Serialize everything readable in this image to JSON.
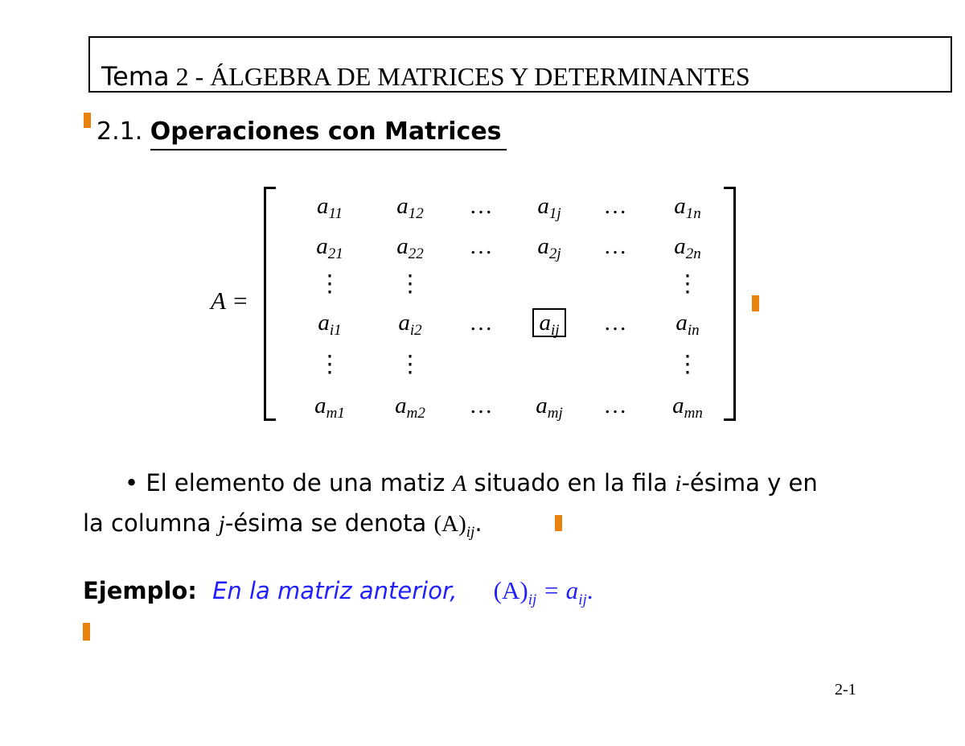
{
  "header": {
    "title_bold": "Tema",
    "title_rest": "2 - ÁLGEBRA DE MATRICES Y DETERMINANTES"
  },
  "section": {
    "number": "2.1.",
    "title": "Operaciones con Matrices"
  },
  "matrix": {
    "lhs": "A =",
    "rows": [
      [
        {
          "b": "a",
          "s": "11"
        },
        {
          "b": "a",
          "s": "12"
        },
        {
          "b": "…",
          "s": ""
        },
        {
          "b": "a",
          "s": "1j"
        },
        {
          "b": "…",
          "s": ""
        },
        {
          "b": "a",
          "s": "1n"
        }
      ],
      [
        {
          "b": "a",
          "s": "21"
        },
        {
          "b": "a",
          "s": "22"
        },
        {
          "b": "…",
          "s": ""
        },
        {
          "b": "a",
          "s": "2j"
        },
        {
          "b": "…",
          "s": ""
        },
        {
          "b": "a",
          "s": "2n"
        }
      ],
      [
        {
          "b": "⋮",
          "s": ""
        },
        {
          "b": "⋮",
          "s": ""
        },
        {
          "b": "",
          "s": ""
        },
        {
          "b": "",
          "s": ""
        },
        {
          "b": "",
          "s": ""
        },
        {
          "b": "⋮",
          "s": ""
        }
      ],
      [
        {
          "b": "a",
          "s": "i1"
        },
        {
          "b": "a",
          "s": "i2"
        },
        {
          "b": "…",
          "s": ""
        },
        {
          "b": "a",
          "s": "ij"
        },
        {
          "b": "…",
          "s": ""
        },
        {
          "b": "a",
          "s": "in"
        }
      ],
      [
        {
          "b": "⋮",
          "s": ""
        },
        {
          "b": "⋮",
          "s": ""
        },
        {
          "b": "",
          "s": ""
        },
        {
          "b": "",
          "s": ""
        },
        {
          "b": "",
          "s": ""
        },
        {
          "b": "⋮",
          "s": ""
        }
      ],
      [
        {
          "b": "a",
          "s": "m1"
        },
        {
          "b": "a",
          "s": "m2"
        },
        {
          "b": "…",
          "s": ""
        },
        {
          "b": "a",
          "s": "mj"
        },
        {
          "b": "…",
          "s": ""
        },
        {
          "b": "a",
          "s": "mn"
        }
      ]
    ]
  },
  "bullet": {
    "symbol": "•",
    "l1a": "El elemento de una matiz ",
    "l1A": "A",
    "l1b": " situado en la fila ",
    "l1i": "i",
    "l1c": "-ésima y en",
    "l2a": "la columna ",
    "l2j": "j",
    "l2b": "-ésima se denota ",
    "l2expr": "(A)",
    "l2sub": "ij",
    "l2end": "."
  },
  "example": {
    "label": "Ejemplo:",
    "text": "En la matriz anterior,",
    "lhs": "(A)",
    "lhs_sub": "ij",
    "eq": " = a",
    "rhs_sub": "ij",
    "end": "."
  },
  "footer": {
    "page": "2-1"
  },
  "colors": {
    "accent": "#e8820c",
    "example": "#1f1fff"
  }
}
